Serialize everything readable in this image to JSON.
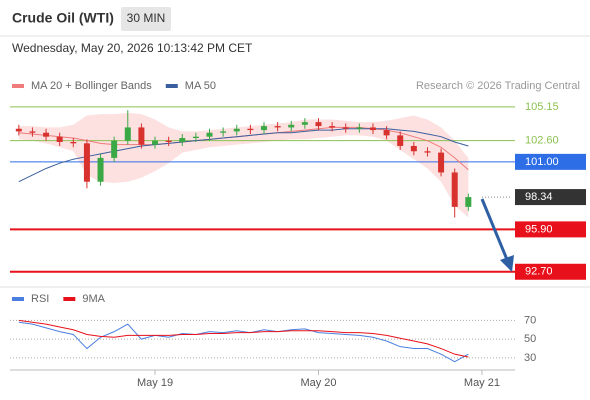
{
  "header": {
    "title": "Crude Oil (WTI)",
    "timeframe": "30 MIN",
    "timestamp": "Wednesday, May 20, 2026 10:13:42 PM CET",
    "attribution": "Research © 2026 Trading Central"
  },
  "chart_data": [
    {
      "type": "candlestick",
      "x": [
        1,
        3,
        5,
        7,
        9,
        11,
        13,
        15,
        17,
        19,
        21,
        23,
        25,
        27,
        29,
        31,
        33,
        35,
        37,
        39,
        41,
        43,
        45,
        47,
        49,
        51,
        53,
        55,
        57,
        59,
        61,
        63,
        65,
        67
      ],
      "open": [
        103.5,
        103.3,
        103.2,
        102.9,
        102.5,
        102.4,
        99.5,
        101.3,
        102.6,
        103.6,
        102.3,
        102.6,
        102.5,
        102.8,
        102.9,
        103.2,
        103.3,
        103.5,
        103.4,
        103.7,
        103.6,
        103.8,
        104.0,
        103.7,
        103.6,
        103.5,
        103.6,
        103.4,
        103.0,
        102.2,
        101.8,
        101.7,
        100.2,
        97.6
      ],
      "high": [
        103.8,
        103.6,
        103.5,
        103.2,
        102.8,
        102.7,
        101.6,
        102.9,
        104.9,
        103.9,
        102.9,
        102.9,
        103.1,
        103.2,
        103.5,
        103.6,
        103.8,
        103.8,
        104.0,
        104.0,
        104.1,
        104.3,
        104.3,
        104.0,
        103.9,
        103.9,
        103.9,
        103.7,
        103.3,
        102.5,
        102.1,
        102.0,
        100.5,
        98.6
      ],
      "low": [
        103.0,
        102.9,
        102.6,
        102.2,
        102.1,
        99.0,
        99.2,
        101.0,
        102.3,
        102.0,
        102.0,
        102.2,
        102.2,
        102.5,
        102.6,
        102.9,
        103.0,
        103.1,
        103.1,
        103.3,
        103.3,
        103.5,
        103.4,
        103.3,
        103.2,
        103.2,
        103.1,
        102.7,
        101.9,
        101.5,
        101.4,
        99.9,
        96.8,
        97.3
      ],
      "close": [
        103.3,
        103.2,
        102.9,
        102.5,
        102.4,
        99.5,
        101.3,
        102.6,
        103.6,
        102.3,
        102.6,
        102.5,
        102.8,
        102.9,
        103.2,
        103.3,
        103.5,
        103.4,
        103.7,
        103.6,
        103.8,
        104.0,
        103.7,
        103.6,
        103.5,
        103.6,
        103.4,
        103.0,
        102.2,
        101.8,
        101.7,
        100.2,
        97.6,
        98.34
      ],
      "up_color": "#3aa845",
      "down_color": "#d8322f",
      "series": [
        {
          "name": "MA 20 + Bollinger Bands",
          "color": "#ef7b7b",
          "band_color": "#fde1e1",
          "values": [
            103.2,
            103.1,
            103.0,
            102.9,
            102.8,
            102.6,
            102.4,
            102.3,
            102.3,
            102.3,
            102.3,
            102.4,
            102.5,
            102.6,
            102.7,
            102.8,
            102.9,
            103.0,
            103.1,
            103.2,
            103.3,
            103.4,
            103.5,
            103.6,
            103.6,
            103.6,
            103.5,
            103.4,
            103.2,
            102.9,
            102.6,
            102.1,
            101.3,
            100.4
          ],
          "upper": [
            103.7,
            103.7,
            103.6,
            103.6,
            103.8,
            104.5,
            104.6,
            104.6,
            104.7,
            104.6,
            104.2,
            103.6,
            103.3,
            103.3,
            103.4,
            103.5,
            103.6,
            103.7,
            103.8,
            103.9,
            104.0,
            104.2,
            104.2,
            104.2,
            104.1,
            104.0,
            104.0,
            104.1,
            104.3,
            104.5,
            104.2,
            103.6,
            102.6,
            101.3
          ],
          "lower": [
            102.7,
            102.6,
            102.4,
            102.1,
            101.8,
            100.0,
            99.5,
            99.4,
            99.5,
            99.8,
            100.3,
            100.9,
            101.7,
            101.9,
            102.1,
            102.2,
            102.3,
            102.4,
            102.5,
            102.6,
            102.7,
            102.7,
            102.8,
            102.9,
            103.0,
            103.0,
            102.9,
            102.6,
            101.9,
            101.2,
            100.5,
            99.5,
            97.7,
            96.8
          ]
        },
        {
          "name": "MA 50",
          "color": "#3a5f9e",
          "values": [
            99.5,
            100.0,
            100.5,
            100.9,
            101.2,
            101.4,
            101.6,
            101.8,
            102.0,
            102.2,
            102.3,
            102.4,
            102.5,
            102.6,
            102.7,
            102.8,
            102.9,
            103.0,
            103.1,
            103.2,
            103.2,
            103.3,
            103.4,
            103.4,
            103.5,
            103.5,
            103.5,
            103.5,
            103.4,
            103.3,
            103.1,
            102.9,
            102.5,
            102.2
          ]
        }
      ],
      "levels": [
        {
          "value": 105.15,
          "label": "105.15",
          "color": "#8cc152",
          "line": "solid",
          "box": false
        },
        {
          "value": 102.6,
          "label": "102.60",
          "color": "#8cc152",
          "line": "solid",
          "box": false
        },
        {
          "value": 101,
          "label": "101.00",
          "color": "#2d6ee6",
          "line": "solid",
          "box": true
        },
        {
          "value": 98.34,
          "label": "98.34",
          "color": "#333333",
          "line": "dotted",
          "box": true
        },
        {
          "value": 95.9,
          "label": "95.90",
          "color": "#e8101a",
          "line": "thick",
          "box": true
        },
        {
          "value": 92.7,
          "label": "92.70",
          "color": "#e8101a",
          "line": "thick",
          "box": true
        }
      ],
      "xlim": [
        0,
        74
      ],
      "ylim": [
        91.7,
        106.2
      ]
    },
    {
      "type": "line",
      "series": [
        {
          "name": "RSI",
          "color": "#4a7fe0",
          "values": [
            68,
            66,
            62,
            58,
            55,
            40,
            52,
            58,
            66,
            50,
            54,
            52,
            56,
            55,
            58,
            57,
            59,
            57,
            60,
            58,
            60,
            61,
            57,
            56,
            55,
            54,
            52,
            48,
            42,
            40,
            40,
            34,
            26,
            34
          ]
        },
        {
          "name": "9MA",
          "color": "#e8101a",
          "values": [
            70,
            68,
            66,
            63,
            60,
            55,
            53,
            52,
            54,
            54,
            54,
            54,
            55,
            55,
            56,
            56,
            57,
            57,
            58,
            58,
            59,
            59,
            59,
            58,
            57,
            57,
            56,
            54,
            51,
            48,
            45,
            40,
            34,
            31
          ]
        }
      ],
      "xlim": [
        0,
        74
      ],
      "xticks": [
        {
          "value": 21,
          "label": "May 19"
        },
        {
          "value": 45,
          "label": "May 20"
        },
        {
          "value": 69,
          "label": "May 21"
        }
      ],
      "ylim": [
        15,
        80
      ],
      "yticks": [
        70,
        50,
        30
      ]
    }
  ]
}
